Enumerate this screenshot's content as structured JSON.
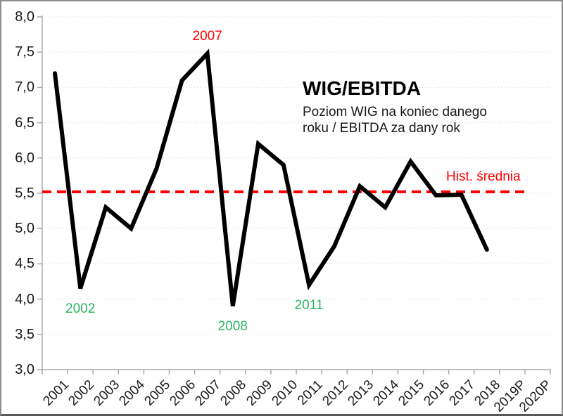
{
  "chart_data": {
    "type": "line",
    "title": "WIG/EBITDA",
    "subtitle": "Poziom WIG na koniec danego\nroku / EBITDA za dany rok",
    "categories": [
      "2001",
      "2002",
      "2003",
      "2004",
      "2005",
      "2006",
      "2007",
      "2008",
      "2009",
      "2010",
      "2011",
      "2012",
      "2013",
      "2014",
      "2015",
      "2016",
      "2017",
      "2018",
      "2019P",
      "2020P"
    ],
    "series": [
      {
        "name": "WIG/EBITDA",
        "color": "#000000",
        "values": [
          7.2,
          4.15,
          5.3,
          5.0,
          5.85,
          7.1,
          7.48,
          3.9,
          6.2,
          5.9,
          4.2,
          4.75,
          5.6,
          5.3,
          5.95,
          5.47,
          5.48,
          4.7,
          null,
          null
        ]
      }
    ],
    "reference_line": {
      "label": "Hist. średnia",
      "value": 5.52,
      "color": "#ff0000",
      "style": "dashed"
    },
    "ylim": [
      3.0,
      8.0
    ],
    "ytick_step": 0.5,
    "ytick_labels": [
      "3,0",
      "3,5",
      "4,0",
      "4,5",
      "5,0",
      "5,5",
      "6,0",
      "6,5",
      "7,0",
      "7,5",
      "8,0"
    ],
    "grid": "dotted-horizontal",
    "legend": "none",
    "annotations": [
      {
        "text": "2007",
        "year": "2007",
        "position": "above",
        "color": "#ff0000"
      },
      {
        "text": "2002",
        "year": "2002",
        "position": "below",
        "color": "#2db45f"
      },
      {
        "text": "2008",
        "year": "2008",
        "position": "below",
        "color": "#2db45f"
      },
      {
        "text": "2011",
        "year": "2011",
        "position": "below",
        "color": "#2db45f"
      }
    ]
  },
  "colors": {
    "axis": "#ababab",
    "grid": "#dcdcdc",
    "text": "#1a1a1a",
    "background": "#ffffff",
    "series": "#000000",
    "reference": "#ff0000",
    "annotation_green": "#2db45f"
  }
}
